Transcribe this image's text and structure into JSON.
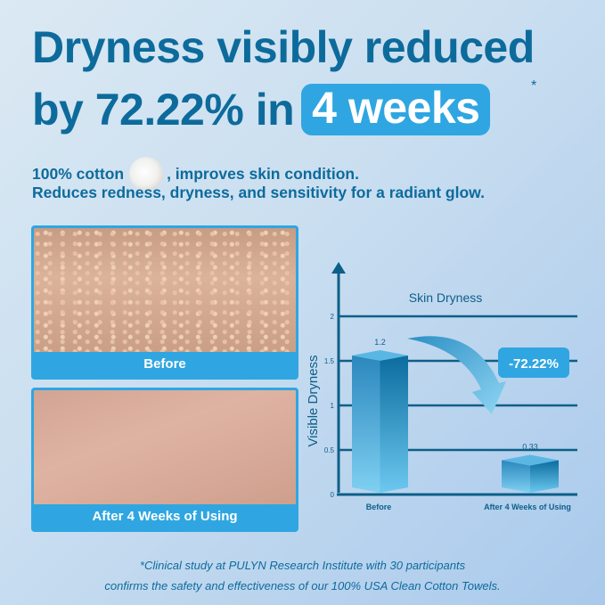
{
  "headline": {
    "line1": "Dryness visibly reduced",
    "line2_prefix": "by 72.22% in",
    "line2_highlight": "4 weeks",
    "asterisk": "*"
  },
  "subtext": {
    "line1_prefix": "100% cotton",
    "line1_suffix": ", improves skin condition.",
    "line2": "Reduces redness, dryness, and sensitivity for a radiant glow.",
    "icon": "cotton-boll-icon"
  },
  "photos": {
    "before_label": "Before",
    "after_label": "After 4 Weeks of Using"
  },
  "chart_data": {
    "type": "bar",
    "title": "Skin Dryness",
    "ylabel": "Visible Dryness",
    "xlabel": "",
    "categories": [
      "Before",
      "After 4 Weeks of Using"
    ],
    "values": [
      1.2,
      0.33
    ],
    "data_labels": [
      "1.2",
      "0.33"
    ],
    "yticks": [
      "0",
      "0.5",
      "1",
      "1.5",
      "2"
    ],
    "ylim": [
      0,
      2
    ],
    "grid": true,
    "annotation": "-72.22%",
    "colors": {
      "bar": "#2d8fc4",
      "accent": "#2fa6e1",
      "axis": "#0d5f88"
    }
  },
  "footnote": {
    "line1": "*Clinical study at PULYN Research Institute with 30 participants",
    "line2": "confirms the safety and effectiveness of our 100% USA Clean Cotton Towels."
  }
}
